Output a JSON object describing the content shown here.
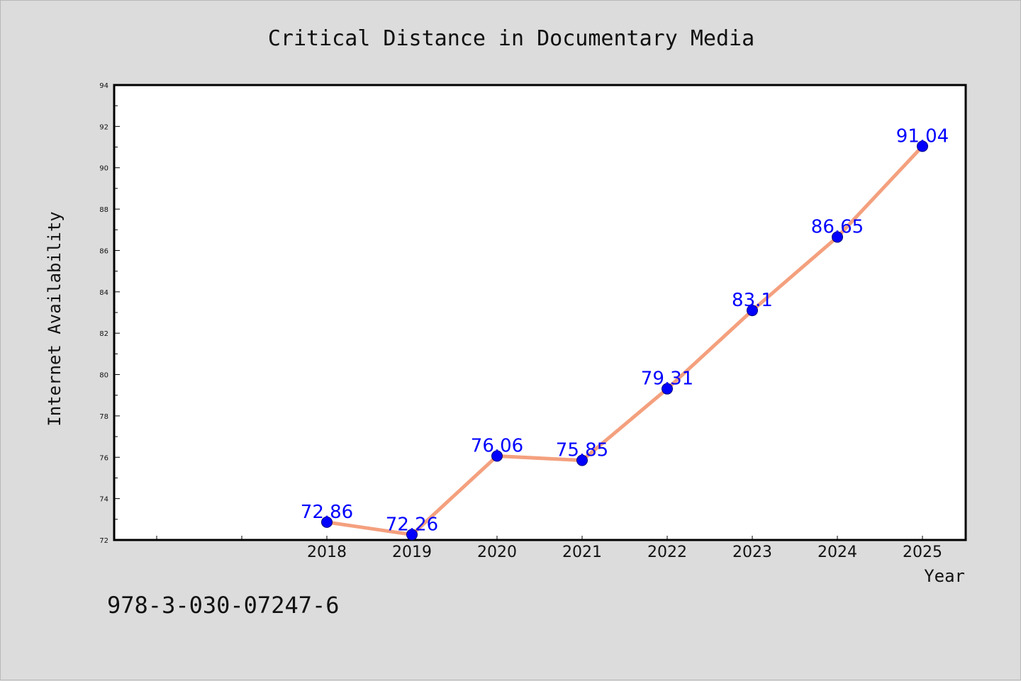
{
  "chart_data": {
    "type": "line",
    "title": "Critical Distance in Documentary Media",
    "xlabel": "Year",
    "ylabel": "Internet Availability",
    "categories": [
      "2018",
      "2019",
      "2020",
      "2021",
      "2022",
      "2023",
      "2024",
      "2025"
    ],
    "series": [
      {
        "values": [
          72.86,
          72.26,
          76.06,
          75.85,
          79.31,
          83.1,
          86.65,
          91.04
        ],
        "data_labels": [
          "72.86",
          "72.26",
          "76.06",
          "75.85",
          "79.31",
          "83.1",
          "86.65",
          "91.04"
        ]
      }
    ],
    "ylim": [
      72,
      94
    ],
    "y_ticks": [
      "72",
      "74",
      "76",
      "78",
      "80",
      "82",
      "84",
      "86",
      "88",
      "90",
      "92",
      "94"
    ],
    "grid": false,
    "line_color": "#f4a07e",
    "marker_color": "#0000ff",
    "label_color": "#0000ff"
  },
  "footer": {
    "code": "978-3-030-07247-6"
  }
}
